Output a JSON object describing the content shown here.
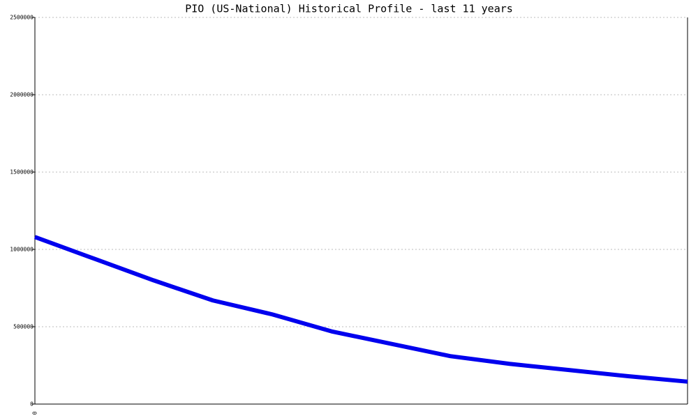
{
  "chart_data": {
    "type": "line",
    "title": "PIO (US-National) Historical Profile - last 11 years",
    "categories": [
      "0",
      null,
      null,
      null,
      null,
      null,
      null,
      null,
      null,
      null,
      null,
      null
    ],
    "series": [
      {
        "color": "#0000ee",
        "values": [
          1080000,
          940000,
          800000,
          670000,
          580000,
          470000,
          390000,
          310000,
          260000,
          220000,
          180000,
          145000
        ]
      }
    ],
    "ylim": [
      0,
      2500000
    ],
    "yticks": [
      0,
      500000,
      1000000,
      1500000,
      2000000,
      2500000
    ],
    "grid": true
  }
}
